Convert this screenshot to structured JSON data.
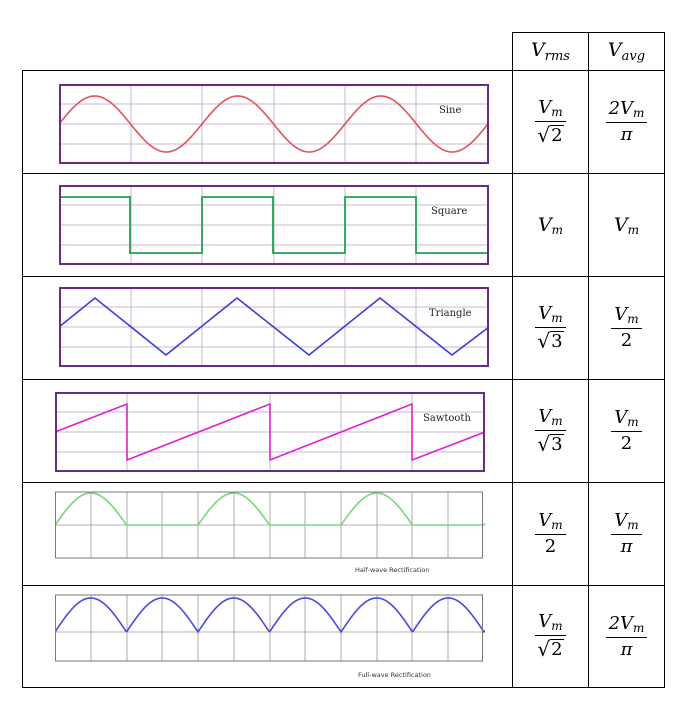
{
  "header": {
    "vrms": "V",
    "vrms_sub": "rms",
    "vavg": "V",
    "vavg_sub": "avg"
  },
  "rows": [
    {
      "label": "Sine",
      "vrms": {
        "num": "V",
        "num_sub": "m",
        "den": "2",
        "sqrt": true
      },
      "vavg": {
        "num": "2V",
        "num_sub": "m",
        "den": "π"
      }
    },
    {
      "label": "Square",
      "vrms": {
        "plain": "V",
        "plain_sub": "m"
      },
      "vavg": {
        "plain": "V",
        "plain_sub": "m"
      }
    },
    {
      "label": "Triangle",
      "vrms": {
        "num": "V",
        "num_sub": "m",
        "den": "3",
        "sqrt": true
      },
      "vavg": {
        "num": "V",
        "num_sub": "m",
        "den": "2"
      }
    },
    {
      "label": "Sawtooth",
      "vrms": {
        "num": "V",
        "num_sub": "m",
        "den": "3",
        "sqrt": true
      },
      "vavg": {
        "num": "V",
        "num_sub": "m",
        "den": "2"
      }
    },
    {
      "label": "Half-wave Rectification",
      "vrms": {
        "num": "V",
        "num_sub": "m",
        "den": "2"
      },
      "vavg": {
        "num": "V",
        "num_sub": "m",
        "den": "π"
      }
    },
    {
      "label": "Full-wave Rectification",
      "vrms": {
        "num": "V",
        "num_sub": "m",
        "den": "2",
        "sqrt": true
      },
      "vavg": {
        "num": "2V",
        "num_sub": "m",
        "den": "π"
      }
    }
  ],
  "colors": {
    "sine": "#e0535a",
    "square": "#22a050",
    "triangle": "#3b3bdc",
    "sawtooth": "#e020d0",
    "half_wave": "#7ad67a",
    "full_wave": "#4a4ad8",
    "frame": "#6a2a86",
    "grid": "#c9b6d6",
    "rect_grid": "#9a9a9a"
  }
}
